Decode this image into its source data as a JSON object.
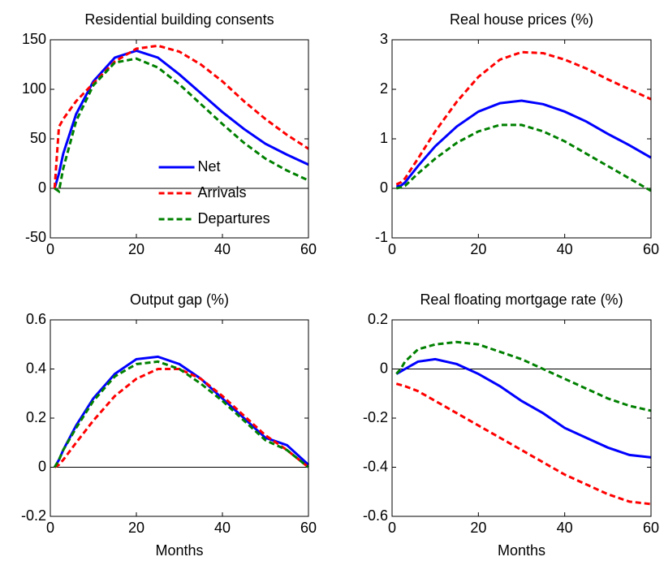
{
  "chart_data": [
    {
      "type": "line",
      "title": "Residential building consents",
      "x": [
        1,
        2,
        3,
        6,
        10,
        15,
        20,
        25,
        30,
        35,
        40,
        45,
        50,
        55,
        60
      ],
      "series": [
        {
          "name": "Net",
          "color": "#0000ff",
          "style": "solid",
          "values": [
            0,
            15,
            35,
            75,
            108,
            132,
            139,
            132,
            115,
            96,
            77,
            60,
            45,
            34,
            24
          ]
        },
        {
          "name": "Arrivals",
          "color": "#ff0000",
          "style": "dashed",
          "values": [
            0,
            62,
            70,
            88,
            106,
            128,
            141,
            144,
            138,
            125,
            108,
            88,
            70,
            54,
            40
          ]
        },
        {
          "name": "Departures",
          "color": "#008000",
          "style": "dashed",
          "values": [
            0,
            -3,
            20,
            68,
            104,
            127,
            131,
            122,
            105,
            85,
            65,
            46,
            30,
            18,
            8
          ]
        }
      ],
      "xlim": [
        0,
        60
      ],
      "xticks": [
        0,
        20,
        40,
        60
      ],
      "ylim": [
        -50,
        150
      ],
      "yticks": [
        -50,
        0,
        50,
        100,
        150
      ],
      "legend": "lower center"
    },
    {
      "type": "line",
      "title": "Real house prices (%)",
      "x": [
        1,
        2,
        3,
        6,
        10,
        15,
        20,
        25,
        30,
        35,
        40,
        45,
        50,
        55,
        60
      ],
      "series": [
        {
          "name": "Net",
          "color": "#0000ff",
          "style": "solid",
          "values": [
            0.05,
            0.05,
            0.12,
            0.45,
            0.85,
            1.25,
            1.55,
            1.72,
            1.77,
            1.7,
            1.55,
            1.35,
            1.1,
            0.87,
            0.62
          ]
        },
        {
          "name": "Arrivals",
          "color": "#ff0000",
          "style": "dashed",
          "values": [
            0.08,
            0.12,
            0.2,
            0.6,
            1.15,
            1.75,
            2.25,
            2.6,
            2.75,
            2.73,
            2.6,
            2.42,
            2.2,
            2.0,
            1.8
          ]
        },
        {
          "name": "Departures",
          "color": "#008000",
          "style": "dashed",
          "values": [
            0,
            0.02,
            0.05,
            0.3,
            0.6,
            0.92,
            1.15,
            1.28,
            1.28,
            1.15,
            0.95,
            0.7,
            0.45,
            0.2,
            -0.05
          ]
        }
      ],
      "xlim": [
        0,
        60
      ],
      "xticks": [
        0,
        20,
        40,
        60
      ],
      "ylim": [
        -1,
        3
      ],
      "yticks": [
        -1,
        0,
        1,
        2,
        3
      ]
    },
    {
      "type": "line",
      "title": "Output gap (%)",
      "xlabel": "Months",
      "x": [
        1,
        2,
        3,
        6,
        10,
        15,
        20,
        25,
        30,
        35,
        40,
        45,
        50,
        55,
        60
      ],
      "series": [
        {
          "name": "Net",
          "color": "#0000ff",
          "style": "solid",
          "values": [
            0,
            0.03,
            0.07,
            0.17,
            0.28,
            0.38,
            0.44,
            0.45,
            0.42,
            0.36,
            0.28,
            0.2,
            0.12,
            0.09,
            0.01
          ]
        },
        {
          "name": "Arrivals",
          "color": "#ff0000",
          "style": "dashed",
          "values": [
            0,
            0.01,
            0.03,
            0.1,
            0.19,
            0.29,
            0.36,
            0.4,
            0.4,
            0.36,
            0.29,
            0.21,
            0.13,
            0.07,
            0
          ]
        },
        {
          "name": "Departures",
          "color": "#008000",
          "style": "dashed",
          "values": [
            0,
            0.03,
            0.07,
            0.16,
            0.27,
            0.37,
            0.42,
            0.43,
            0.4,
            0.34,
            0.27,
            0.19,
            0.11,
            0.07,
            0
          ]
        }
      ],
      "xlim": [
        0,
        60
      ],
      "xticks": [
        0,
        20,
        40,
        60
      ],
      "ylim": [
        -0.2,
        0.6
      ],
      "yticks": [
        -0.2,
        0,
        0.2,
        0.4,
        0.6
      ]
    },
    {
      "type": "line",
      "title": "Real floating mortgage rate (%)",
      "xlabel": "Months",
      "x": [
        1,
        2,
        3,
        6,
        10,
        15,
        20,
        25,
        30,
        35,
        40,
        45,
        50,
        55,
        60
      ],
      "series": [
        {
          "name": "Net",
          "color": "#0000ff",
          "style": "solid",
          "values": [
            -0.02,
            -0.01,
            0,
            0.03,
            0.04,
            0.02,
            -0.02,
            -0.07,
            -0.13,
            -0.18,
            -0.24,
            -0.28,
            -0.32,
            -0.35,
            -0.36
          ]
        },
        {
          "name": "Arrivals",
          "color": "#ff0000",
          "style": "dashed",
          "values": [
            -0.06,
            -0.065,
            -0.07,
            -0.09,
            -0.13,
            -0.18,
            -0.23,
            -0.28,
            -0.33,
            -0.38,
            -0.43,
            -0.47,
            -0.51,
            -0.54,
            -0.55
          ]
        },
        {
          "name": "Departures",
          "color": "#008000",
          "style": "dashed",
          "values": [
            -0.02,
            0,
            0.03,
            0.08,
            0.1,
            0.11,
            0.1,
            0.07,
            0.04,
            0,
            -0.04,
            -0.08,
            -0.12,
            -0.15,
            -0.17
          ]
        }
      ],
      "xlim": [
        0,
        60
      ],
      "xticks": [
        0,
        20,
        40,
        60
      ],
      "ylim": [
        -0.6,
        0.2
      ],
      "yticks": [
        -0.6,
        -0.4,
        -0.2,
        0,
        0.2
      ]
    }
  ]
}
